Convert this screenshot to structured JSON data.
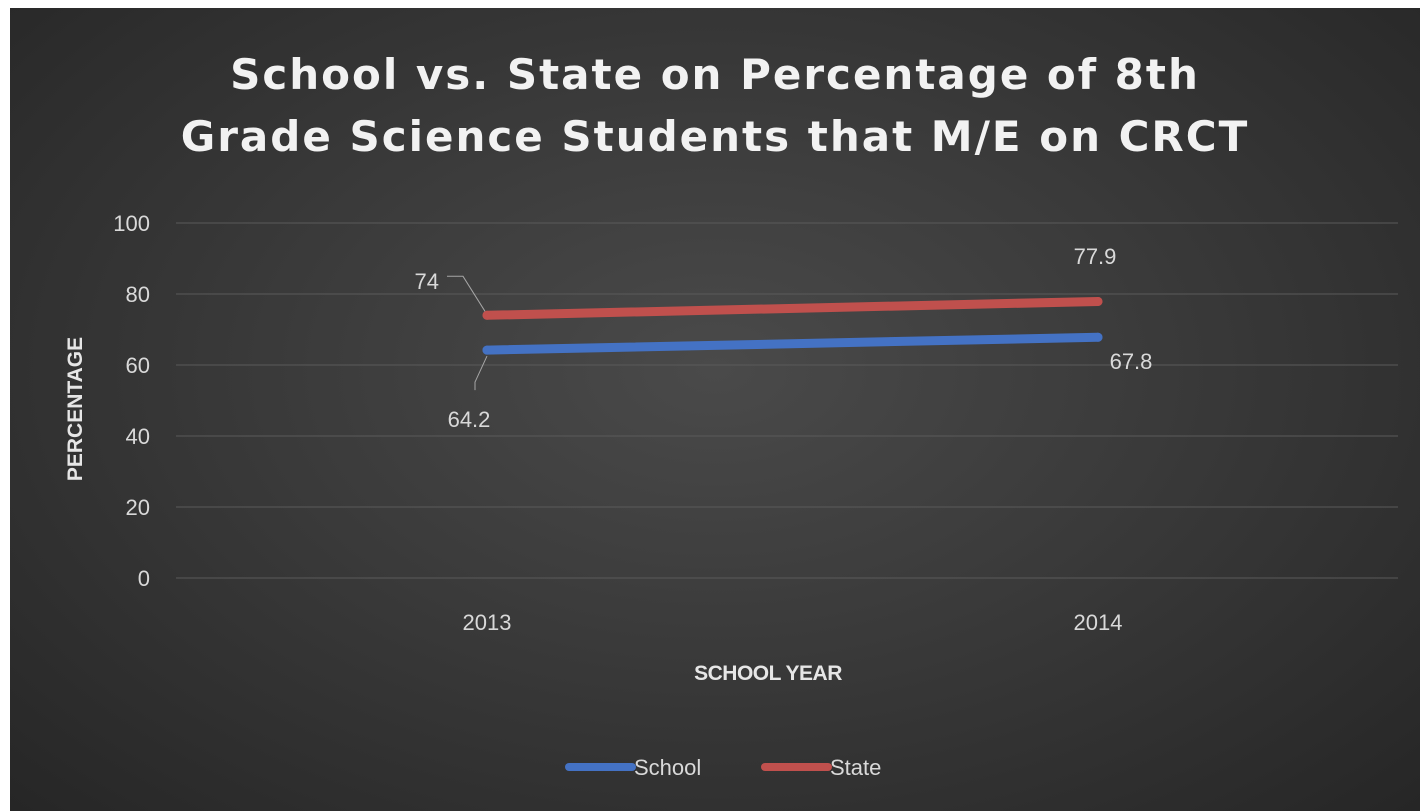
{
  "chart_data": {
    "type": "line",
    "title_lines": [
      "School vs. State on Percentage of 8th",
      "Grade Science Students that M/E on CRCT"
    ],
    "xlabel": "SCHOOL YEAR",
    "ylabel": "PERCENTAGE",
    "categories": [
      "2013",
      "2014"
    ],
    "ylim": [
      0,
      100
    ],
    "yticks": [
      "0",
      "20",
      "40",
      "60",
      "80",
      "100"
    ],
    "grid": true,
    "legend_position": "bottom",
    "series": [
      {
        "name": "School",
        "values": [
          64.2,
          67.8
        ],
        "labels": [
          "64.2",
          "67.8"
        ],
        "color": "#4472c4"
      },
      {
        "name": "State",
        "values": [
          74,
          77.9
        ],
        "labels": [
          "74",
          "77.9"
        ],
        "color": "#c0504d"
      }
    ]
  }
}
